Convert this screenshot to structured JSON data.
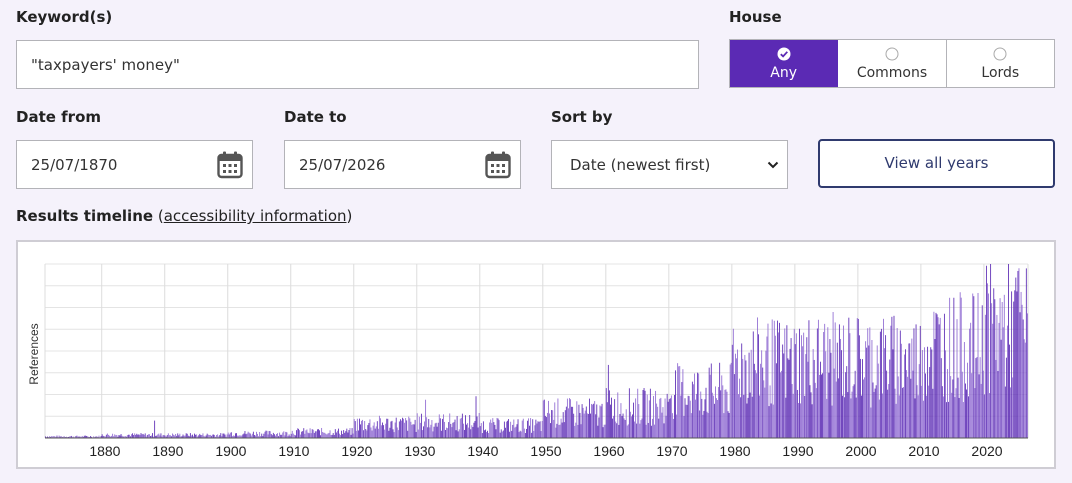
{
  "keyword": {
    "label": "Keyword(s)",
    "value": "\"taxpayers' money\""
  },
  "house": {
    "label": "House",
    "options": [
      {
        "label": "Any",
        "selected": true
      },
      {
        "label": "Commons",
        "selected": false
      },
      {
        "label": "Lords",
        "selected": false
      }
    ]
  },
  "date_from": {
    "label": "Date from",
    "value": "25/07/1870",
    "icon": "calendar-icon"
  },
  "date_to": {
    "label": "Date to",
    "value": "25/07/2026",
    "icon": "calendar-icon"
  },
  "sort_by": {
    "label": "Sort by",
    "value": "Date (newest first)",
    "icon": "chevron-down-icon"
  },
  "view_all_button": "View all years",
  "timeline": {
    "heading": "Results timeline",
    "paren_open": "(",
    "link": "accessibility information",
    "paren_close": ")"
  },
  "colors": {
    "accent": "#5b2ab4",
    "bar_dark": "#5b2ab4",
    "bar_light": "#8f6ad2",
    "button_border": "#2f3a6e"
  },
  "chart_data": {
    "type": "bar",
    "ylabel": "References",
    "xlabel": "",
    "x_ticks": [
      1880,
      1890,
      1900,
      1910,
      1920,
      1930,
      1940,
      1950,
      1960,
      1970,
      1980,
      1990,
      2000,
      2010,
      2020
    ],
    "xlim": [
      1870.5,
      2026.5
    ],
    "ylim": [
      0,
      100
    ],
    "grid": true,
    "decades": [
      {
        "start": 1870,
        "level": 1,
        "spikes": []
      },
      {
        "start": 1880,
        "level": 2,
        "spikes": [
          [
            1888,
            10
          ]
        ]
      },
      {
        "start": 1890,
        "level": 2,
        "spikes": []
      },
      {
        "start": 1900,
        "level": 3,
        "spikes": []
      },
      {
        "start": 1910,
        "level": 4,
        "spikes": []
      },
      {
        "start": 1920,
        "level": 9,
        "spikes": []
      },
      {
        "start": 1930,
        "level": 10,
        "spikes": [
          [
            1931,
            22
          ],
          [
            1939,
            24
          ]
        ]
      },
      {
        "start": 1940,
        "level": 8,
        "spikes": []
      },
      {
        "start": 1950,
        "level": 16,
        "spikes": []
      },
      {
        "start": 1960,
        "level": 20,
        "spikes": [
          [
            1960,
            42
          ]
        ]
      },
      {
        "start": 1970,
        "level": 30,
        "spikes": []
      },
      {
        "start": 1980,
        "level": 48,
        "spikes": [
          [
            1979,
            58
          ]
        ]
      },
      {
        "start": 1990,
        "level": 50,
        "spikes": []
      },
      {
        "start": 2000,
        "level": 50,
        "spikes": []
      },
      {
        "start": 2010,
        "level": 58,
        "spikes": []
      },
      {
        "start": 2020,
        "level": 70,
        "spikes": [
          [
            2020,
            99
          ],
          [
            2025,
            96
          ]
        ]
      }
    ]
  }
}
